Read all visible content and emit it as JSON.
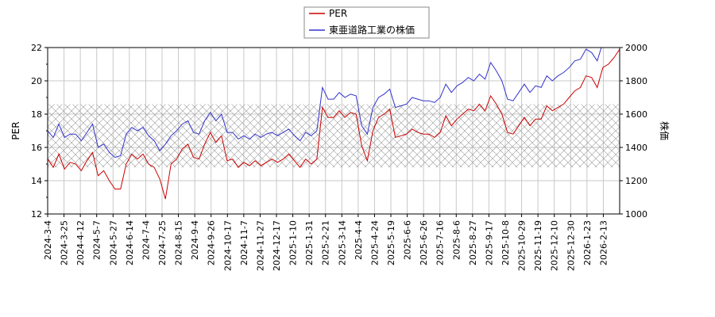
{
  "chart_data": {
    "type": "line",
    "title": "",
    "legend": {
      "placement": "top-center",
      "entries": [
        {
          "label": "PER",
          "color": "#cc0000"
        },
        {
          "label": "東亜道路工業の株価",
          "color": "#3333cc"
        }
      ]
    },
    "x_axis": {
      "tick_labels": [
        "2024-3-4",
        "2024-3-25",
        "2024-4-12",
        "2024-5-7",
        "2024-5-27",
        "2024-6-14",
        "2024-7-4",
        "2024-7-25",
        "2024-8-15",
        "2024-9-4",
        "2024-9-26",
        "2024-10-17",
        "2024-11-7",
        "2024-11-27",
        "2024-12-17",
        "2025-1-10",
        "2025-1-31",
        "2025-2-21",
        "2025-3-14",
        "2025-4-4",
        "2025-4-24",
        "2025-5-19",
        "2025-6-6",
        "2025-6-26",
        "2025-7-16",
        "2025-8-6",
        "2025-8-27",
        "2025-9-17",
        "2025-10-8",
        "2025-10-29",
        "2025-11-19",
        "2025-12-10",
        "2025-12-30",
        "2026-1-23",
        "2026-2-13"
      ]
    },
    "y_left": {
      "label": "PER",
      "min": 12,
      "max": 22,
      "ticks": [
        12,
        14,
        16,
        18,
        20,
        22
      ]
    },
    "y_right": {
      "label": "株価",
      "min": 1000,
      "max": 2000,
      "ticks": [
        1000,
        1200,
        1400,
        1600,
        1800,
        2000
      ]
    },
    "grid": true,
    "band": {
      "y_min": 14.8,
      "y_max": 18.6,
      "pattern": "crosshatch"
    },
    "series": [
      {
        "name": "PER",
        "axis": "left",
        "color": "#cc0000",
        "points": [
          [
            0,
            15.3
          ],
          [
            1,
            14.8
          ],
          [
            2,
            15.6
          ],
          [
            3,
            14.7
          ],
          [
            4,
            15.1
          ],
          [
            5,
            15.0
          ],
          [
            6,
            14.6
          ],
          [
            7,
            15.2
          ],
          [
            8,
            15.7
          ],
          [
            9,
            14.3
          ],
          [
            10,
            14.6
          ],
          [
            11,
            14.0
          ],
          [
            12,
            13.5
          ],
          [
            13,
            13.5
          ],
          [
            14,
            15.0
          ],
          [
            15,
            15.6
          ],
          [
            16,
            15.3
          ],
          [
            17,
            15.6
          ],
          [
            18,
            15.0
          ],
          [
            19,
            14.8
          ],
          [
            20,
            14.1
          ],
          [
            21,
            12.9
          ],
          [
            22,
            15.0
          ],
          [
            23,
            15.3
          ],
          [
            24,
            15.9
          ],
          [
            25,
            16.2
          ],
          [
            26,
            15.4
          ],
          [
            27,
            15.3
          ],
          [
            28,
            16.2
          ],
          [
            29,
            16.9
          ],
          [
            30,
            16.3
          ],
          [
            31,
            16.7
          ],
          [
            32,
            15.2
          ],
          [
            33,
            15.3
          ],
          [
            34,
            14.8
          ],
          [
            35,
            15.1
          ],
          [
            36,
            14.9
          ],
          [
            37,
            15.2
          ],
          [
            38,
            14.9
          ],
          [
            39,
            15.1
          ],
          [
            40,
            15.3
          ],
          [
            41,
            15.1
          ],
          [
            42,
            15.3
          ],
          [
            43,
            15.6
          ],
          [
            44,
            15.2
          ],
          [
            45,
            14.8
          ],
          [
            46,
            15.3
          ],
          [
            47,
            15.0
          ],
          [
            48,
            15.3
          ],
          [
            49,
            18.4
          ],
          [
            50,
            17.8
          ],
          [
            51,
            17.8
          ],
          [
            52,
            18.2
          ],
          [
            53,
            17.8
          ],
          [
            54,
            18.1
          ],
          [
            55,
            18.0
          ],
          [
            56,
            16.1
          ],
          [
            57,
            15.2
          ],
          [
            58,
            17.0
          ],
          [
            59,
            17.8
          ],
          [
            60,
            18.0
          ],
          [
            61,
            18.3
          ],
          [
            62,
            16.6
          ],
          [
            63,
            16.7
          ],
          [
            64,
            16.8
          ],
          [
            65,
            17.1
          ],
          [
            66,
            16.9
          ],
          [
            67,
            16.8
          ],
          [
            68,
            16.8
          ],
          [
            69,
            16.6
          ],
          [
            70,
            16.9
          ],
          [
            71,
            17.9
          ],
          [
            72,
            17.3
          ],
          [
            73,
            17.7
          ],
          [
            74,
            18.0
          ],
          [
            75,
            18.3
          ],
          [
            76,
            18.2
          ],
          [
            77,
            18.6
          ],
          [
            78,
            18.2
          ],
          [
            79,
            19.1
          ],
          [
            80,
            18.6
          ],
          [
            81,
            18.0
          ],
          [
            82,
            16.9
          ],
          [
            83,
            16.8
          ],
          [
            84,
            17.3
          ],
          [
            85,
            17.8
          ],
          [
            86,
            17.3
          ],
          [
            87,
            17.7
          ],
          [
            88,
            17.7
          ],
          [
            89,
            18.5
          ],
          [
            90,
            18.2
          ],
          [
            91,
            18.4
          ],
          [
            92,
            18.6
          ],
          [
            93,
            19.0
          ],
          [
            94,
            19.4
          ],
          [
            95,
            19.6
          ],
          [
            96,
            20.3
          ],
          [
            97,
            20.2
          ],
          [
            98,
            19.6
          ],
          [
            99,
            20.8
          ],
          [
            100,
            21.0
          ],
          [
            101,
            21.4
          ],
          [
            102,
            21.9
          ]
        ]
      },
      {
        "name": "東亜道路工業の株価",
        "axis": "right",
        "color": "#3333cc",
        "points": [
          [
            0,
            1500
          ],
          [
            1,
            1460
          ],
          [
            2,
            1540
          ],
          [
            3,
            1460
          ],
          [
            4,
            1480
          ],
          [
            5,
            1480
          ],
          [
            6,
            1440
          ],
          [
            7,
            1490
          ],
          [
            8,
            1540
          ],
          [
            9,
            1400
          ],
          [
            10,
            1420
          ],
          [
            11,
            1370
          ],
          [
            12,
            1340
          ],
          [
            13,
            1350
          ],
          [
            14,
            1480
          ],
          [
            15,
            1520
          ],
          [
            16,
            1500
          ],
          [
            17,
            1520
          ],
          [
            18,
            1470
          ],
          [
            19,
            1440
          ],
          [
            20,
            1380
          ],
          [
            21,
            1420
          ],
          [
            22,
            1470
          ],
          [
            23,
            1500
          ],
          [
            24,
            1540
          ],
          [
            25,
            1560
          ],
          [
            26,
            1490
          ],
          [
            27,
            1480
          ],
          [
            28,
            1560
          ],
          [
            29,
            1610
          ],
          [
            30,
            1560
          ],
          [
            31,
            1600
          ],
          [
            32,
            1490
          ],
          [
            33,
            1490
          ],
          [
            34,
            1450
          ],
          [
            35,
            1470
          ],
          [
            36,
            1450
          ],
          [
            37,
            1480
          ],
          [
            38,
            1460
          ],
          [
            39,
            1480
          ],
          [
            40,
            1490
          ],
          [
            41,
            1470
          ],
          [
            42,
            1490
          ],
          [
            43,
            1510
          ],
          [
            44,
            1470
          ],
          [
            45,
            1440
          ],
          [
            46,
            1490
          ],
          [
            47,
            1470
          ],
          [
            48,
            1500
          ],
          [
            49,
            1760
          ],
          [
            50,
            1690
          ],
          [
            51,
            1690
          ],
          [
            52,
            1730
          ],
          [
            53,
            1700
          ],
          [
            54,
            1720
          ],
          [
            55,
            1710
          ],
          [
            56,
            1530
          ],
          [
            57,
            1480
          ],
          [
            58,
            1640
          ],
          [
            59,
            1700
          ],
          [
            60,
            1720
          ],
          [
            61,
            1750
          ],
          [
            62,
            1640
          ],
          [
            63,
            1650
          ],
          [
            64,
            1660
          ],
          [
            65,
            1700
          ],
          [
            66,
            1690
          ],
          [
            67,
            1680
          ],
          [
            68,
            1680
          ],
          [
            69,
            1670
          ],
          [
            70,
            1700
          ],
          [
            71,
            1780
          ],
          [
            72,
            1730
          ],
          [
            73,
            1770
          ],
          [
            74,
            1790
          ],
          [
            75,
            1820
          ],
          [
            76,
            1800
          ],
          [
            77,
            1840
          ],
          [
            78,
            1810
          ],
          [
            79,
            1910
          ],
          [
            80,
            1860
          ],
          [
            81,
            1800
          ],
          [
            82,
            1690
          ],
          [
            83,
            1680
          ],
          [
            84,
            1730
          ],
          [
            85,
            1780
          ],
          [
            86,
            1730
          ],
          [
            87,
            1770
          ],
          [
            88,
            1760
          ],
          [
            89,
            1830
          ],
          [
            90,
            1800
          ],
          [
            91,
            1830
          ],
          [
            92,
            1850
          ],
          [
            93,
            1880
          ],
          [
            94,
            1920
          ],
          [
            95,
            1930
          ],
          [
            96,
            1990
          ],
          [
            97,
            1970
          ],
          [
            98,
            1920
          ],
          [
            99,
            2030
          ],
          [
            100,
            2060
          ],
          [
            101,
            2080
          ],
          [
            102,
            2100
          ]
        ]
      }
    ]
  }
}
